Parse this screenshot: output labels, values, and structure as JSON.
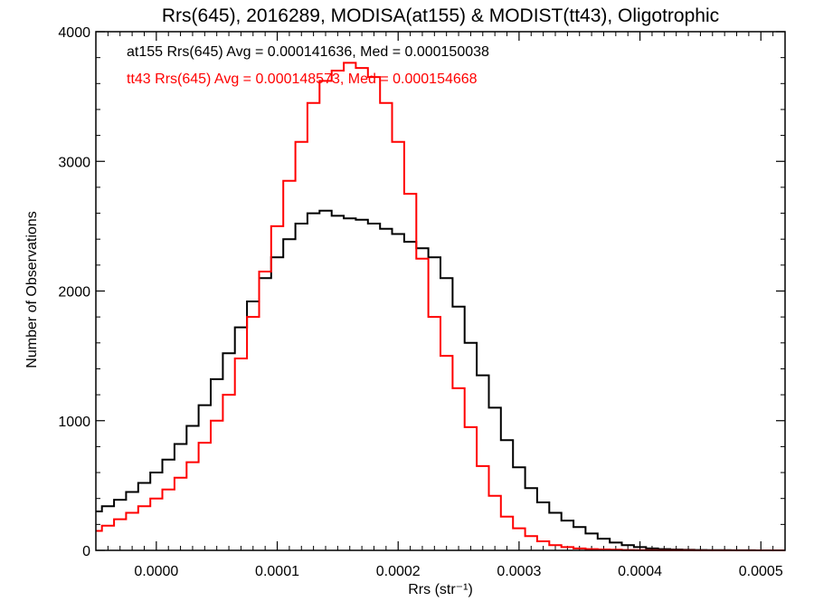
{
  "chart_data": {
    "type": "line",
    "title": "Rrs(645), 2016289, MODISA(at155) & MODIST(tt43), Oligotrophic",
    "xlabel": "Rrs (str⁻¹)",
    "ylabel": "Number of Observations",
    "xlim": [
      -5e-05,
      0.00052
    ],
    "ylim": [
      0,
      4000
    ],
    "x_ticks": [
      0.0,
      0.0001,
      0.0002,
      0.0003,
      0.0004,
      0.0005
    ],
    "x_tick_labels": [
      "0.0000",
      "0.0001",
      "0.0002",
      "0.0003",
      "0.0004",
      "0.0005"
    ],
    "y_ticks": [
      0,
      1000,
      2000,
      3000,
      4000
    ],
    "y_tick_labels": [
      "0",
      "1000",
      "2000",
      "3000",
      "4000"
    ],
    "grid": false,
    "annotations": [
      {
        "text": "at155 Rrs(645) Avg = 0.000141636, Med = 0.000150038",
        "color": "#000000"
      },
      {
        "text": "tt43 Rrs(645) Avg = 0.000148573, Med = 0.000154668",
        "color": "#ff0000"
      }
    ],
    "series": [
      {
        "color": "#000000",
        "style": "step",
        "x": [
          -5e-05,
          -4e-05,
          -3e-05,
          -2e-05,
          -1e-05,
          0.0,
          1e-05,
          2e-05,
          3e-05,
          4e-05,
          5e-05,
          6e-05,
          7e-05,
          8e-05,
          9e-05,
          0.0001,
          0.00011,
          0.00012,
          0.00013,
          0.00014,
          0.00015,
          0.00016,
          0.00017,
          0.00018,
          0.00019,
          0.0002,
          0.00021,
          0.00022,
          0.00023,
          0.00024,
          0.00025,
          0.00026,
          0.00027,
          0.00028,
          0.00029,
          0.0003,
          0.00031,
          0.00032,
          0.00033,
          0.00034,
          0.00035,
          0.00036,
          0.00037,
          0.00038,
          0.00039,
          0.0004,
          0.00041,
          0.00042,
          0.00043,
          0.00044,
          0.00045,
          0.00046,
          0.00047,
          0.00048,
          0.00049,
          0.0005,
          0.00051,
          0.00052
        ],
        "y": [
          300,
          340,
          390,
          450,
          520,
          600,
          700,
          820,
          960,
          1120,
          1320,
          1520,
          1720,
          1920,
          2100,
          2260,
          2400,
          2520,
          2600,
          2620,
          2580,
          2560,
          2550,
          2520,
          2480,
          2440,
          2380,
          2330,
          2260,
          2100,
          1880,
          1600,
          1350,
          1100,
          850,
          640,
          480,
          370,
          290,
          230,
          180,
          130,
          90,
          60,
          40,
          25,
          15,
          10,
          6,
          4,
          3,
          2,
          2,
          1,
          1,
          0,
          0,
          0
        ]
      },
      {
        "color": "#ff0000",
        "style": "step",
        "x": [
          -5e-05,
          -4e-05,
          -3e-05,
          -2e-05,
          -1e-05,
          0.0,
          1e-05,
          2e-05,
          3e-05,
          4e-05,
          5e-05,
          6e-05,
          7e-05,
          8e-05,
          9e-05,
          0.0001,
          0.00011,
          0.00012,
          0.00013,
          0.00014,
          0.00015,
          0.00016,
          0.00017,
          0.00018,
          0.00019,
          0.0002,
          0.00021,
          0.00022,
          0.00023,
          0.00024,
          0.00025,
          0.00026,
          0.00027,
          0.00028,
          0.00029,
          0.0003,
          0.00031,
          0.00032,
          0.00033,
          0.00034,
          0.00035,
          0.00036,
          0.00037,
          0.00038,
          0.00039,
          0.0004,
          0.00041,
          0.00042,
          0.00043,
          0.00044,
          0.00045,
          0.00046,
          0.00047,
          0.00048,
          0.00049,
          0.0005,
          0.00051,
          0.00052
        ],
        "y": [
          150,
          190,
          240,
          290,
          340,
          400,
          470,
          560,
          680,
          830,
          1000,
          1200,
          1480,
          1800,
          2150,
          2500,
          2850,
          3150,
          3450,
          3620,
          3700,
          3760,
          3720,
          3650,
          3450,
          3150,
          2750,
          2250,
          1800,
          1500,
          1250,
          950,
          650,
          420,
          260,
          170,
          110,
          70,
          40,
          25,
          15,
          10,
          7,
          5,
          3,
          2,
          2,
          1,
          1,
          1,
          0,
          0,
          0,
          0,
          0,
          0,
          0,
          0
        ]
      }
    ]
  }
}
